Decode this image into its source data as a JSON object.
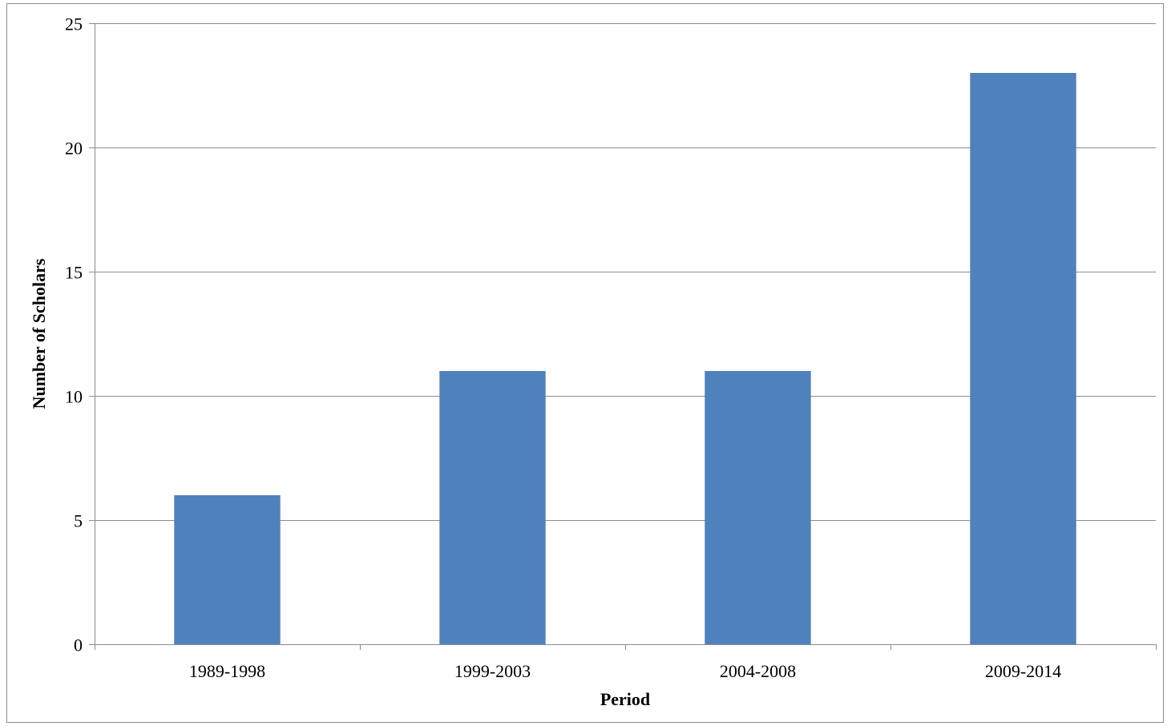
{
  "chart_data": {
    "type": "bar",
    "title": "",
    "xlabel": "Period",
    "ylabel": "Number of Scholars",
    "categories": [
      "1989-1998",
      "1999-2003",
      "2004-2008",
      "2009-2014"
    ],
    "values": [
      6,
      11,
      11,
      23
    ],
    "ylim": [
      0,
      25
    ],
    "yticks": [
      "0",
      "5",
      "10",
      "15",
      "20",
      "25"
    ],
    "grid": true,
    "legend": "none",
    "bar_color": "#4f81bd",
    "grid_color": "#8c8c8c"
  }
}
